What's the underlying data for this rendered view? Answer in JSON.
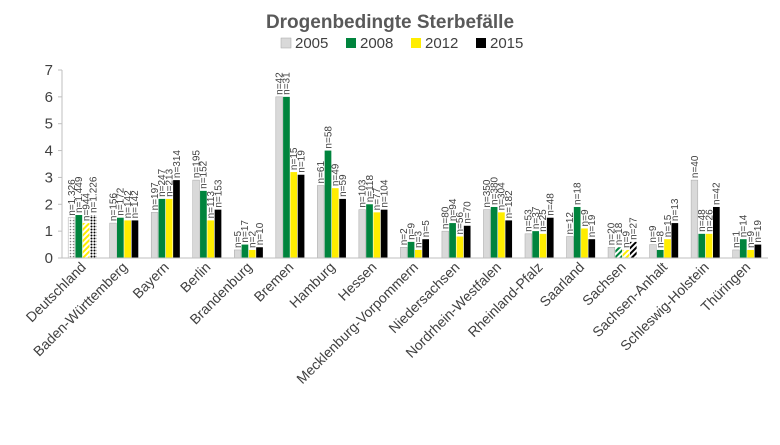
{
  "chart_data": {
    "type": "bar",
    "title": "Drogenbedingte Sterbefälle",
    "xlabel": "",
    "ylabel": "",
    "ylim": [
      0,
      7
    ],
    "yticks": [
      0,
      1,
      2,
      3,
      4,
      5,
      6,
      7
    ],
    "grid": false,
    "legend_position": "top",
    "categories": [
      "Deutschland",
      "Baden-Württemberg",
      "Bayern",
      "Berlin",
      "Brandenburg",
      "Bremen",
      "Hamburg",
      "Hessen",
      "Mecklenburg-Vorpommern",
      "Niedersachsen",
      "Nordrhein-Westfalen",
      "Rheinland-Pfalz",
      "Saarland",
      "Sachsen",
      "Sachsen-Anhalt",
      "Schleswig-Holstein",
      "Thüringen"
    ],
    "series": [
      {
        "name": "2005",
        "color": "#d9d9d9",
        "values": [
          1.5,
          1.3,
          1.7,
          2.9,
          0.3,
          6.0,
          2.7,
          1.8,
          0.4,
          1.0,
          1.8,
          0.9,
          0.8,
          0.4,
          0.5,
          2.9,
          0.3
        ],
        "labels": [
          "n=1.326",
          "n=156",
          "n=197",
          "n=195",
          "n=5",
          "n=42",
          "n=61",
          "n=103",
          "n=2",
          "n=80",
          "n=350",
          "n=53",
          "n=12",
          "n=20",
          "n=9",
          "n=40",
          "n=1"
        ]
      },
      {
        "name": "2008",
        "color": "#00843d",
        "values": [
          1.6,
          1.5,
          2.2,
          2.5,
          0.5,
          6.0,
          4.0,
          2.0,
          0.6,
          1.3,
          1.9,
          1.0,
          1.9,
          0.4,
          0.3,
          0.9,
          0.7
        ],
        "labels": [
          "n=1.449",
          "n=172",
          "n=247",
          "n=152",
          "n=17",
          "n=31",
          "n=58",
          "n=118",
          "n=9",
          "n=94",
          "n=380",
          "n=37",
          "n=18",
          "n=18",
          "n=8",
          "n=48",
          "n=14"
        ]
      },
      {
        "name": "2012",
        "color": "#ffed00",
        "values": [
          1.3,
          1.4,
          2.2,
          1.4,
          0.3,
          3.2,
          2.6,
          1.7,
          0.3,
          0.8,
          1.7,
          0.9,
          1.1,
          0.3,
          0.7,
          0.9,
          0.3
        ],
        "labels": [
          "n=944",
          "n=142",
          "n=213",
          "n=113",
          "n=2",
          "n=15",
          "n=49",
          "n=77",
          "n=3",
          "n=56",
          "n=304",
          "n=25",
          "n=9",
          "n=9",
          "n=15",
          "n=26",
          "n=9"
        ]
      },
      {
        "name": "2015",
        "color": "#000000",
        "values": [
          1.6,
          1.4,
          2.9,
          1.8,
          0.4,
          3.1,
          2.2,
          1.8,
          0.7,
          1.2,
          1.4,
          1.5,
          0.7,
          0.6,
          1.3,
          1.9,
          0.5
        ],
        "labels": [
          "n=1.226",
          "n=142",
          "n=314",
          "n=153",
          "n=10",
          "n=19",
          "n=59",
          "n=104",
          "n=5",
          "n=70",
          "n=182",
          "n=48",
          "n=19",
          "n=27",
          "n=13",
          "n=42",
          "n=19"
        ]
      }
    ],
    "hatched_bars": [
      {
        "category": "Deutschland",
        "series": [
          "2005",
          "2012",
          "2015"
        ]
      },
      {
        "category": "Sachsen",
        "series": [
          "2008",
          "2012",
          "2015"
        ]
      }
    ]
  }
}
